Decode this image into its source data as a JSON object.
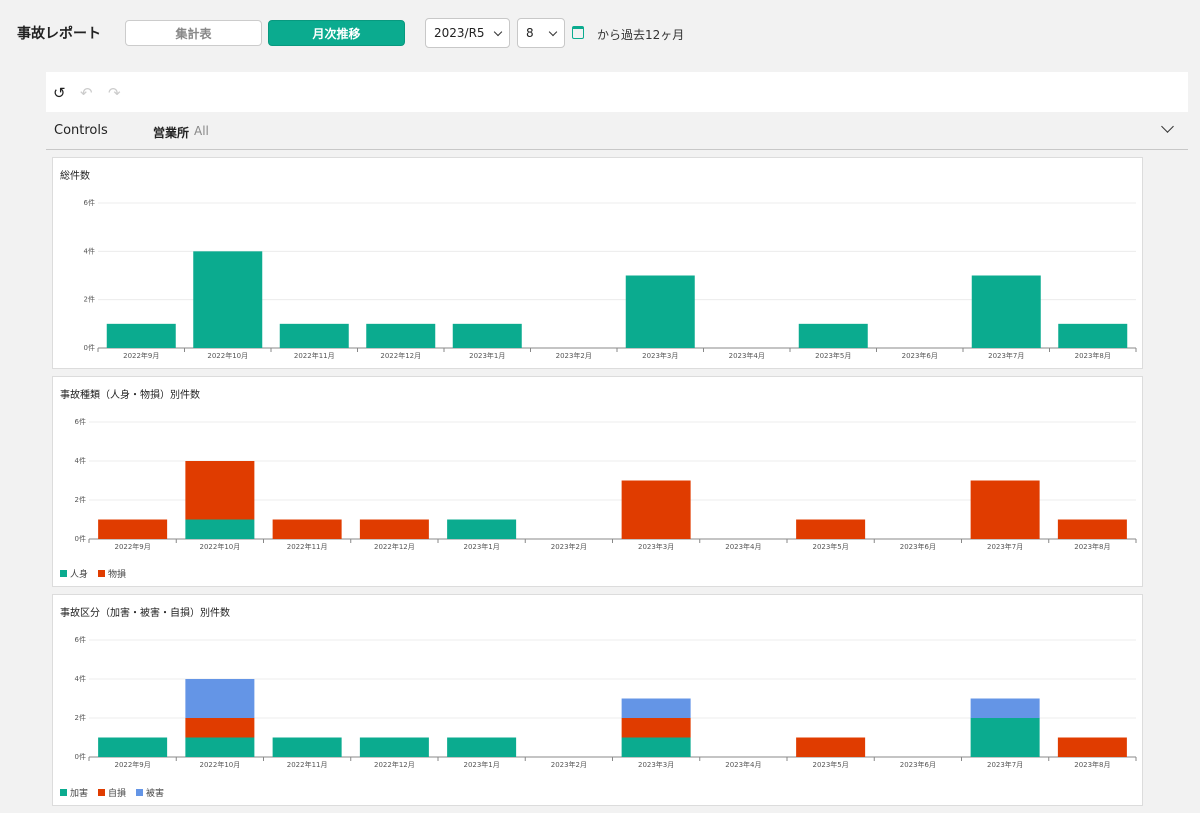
{
  "header": {
    "title": "事故レポート",
    "summary_button": "集計表",
    "monthly_button": "月次推移",
    "year_value": "2023/R5",
    "month_value": "8",
    "range_text": "から過去12ヶ月"
  },
  "controls": {
    "label": "Controls",
    "filter_label": "営業所",
    "filter_value": "All"
  },
  "colors": {
    "green": "#0bab8f",
    "red": "#e03c00",
    "blue": "#6495e6"
  },
  "chart_data": [
    {
      "type": "bar",
      "title": "総件数",
      "categories": [
        "2022年9月",
        "2022年10月",
        "2022年11月",
        "2022年12月",
        "2023年1月",
        "2023年2月",
        "2023年3月",
        "2023年4月",
        "2023年5月",
        "2023年6月",
        "2023年7月",
        "2023年8月"
      ],
      "series": [
        {
          "values": [
            1,
            4,
            1,
            1,
            1,
            0,
            3,
            0,
            1,
            0,
            3,
            1
          ],
          "color": "#0bab8f"
        }
      ],
      "yticks": [
        "0件",
        "2件",
        "4件",
        "6件"
      ],
      "ylim": [
        0,
        6
      ]
    },
    {
      "type": "bar",
      "stacked": true,
      "title": "事故種類（人身・物損）別件数",
      "categories": [
        "2022年9月",
        "2022年10月",
        "2022年11月",
        "2022年12月",
        "2023年1月",
        "2023年2月",
        "2023年3月",
        "2023年4月",
        "2023年5月",
        "2023年6月",
        "2023年7月",
        "2023年8月"
      ],
      "series": [
        {
          "name": "人身",
          "values": [
            0,
            1,
            0,
            0,
            1,
            0,
            0,
            0,
            0,
            0,
            0,
            0
          ],
          "color": "#0bab8f"
        },
        {
          "name": "物損",
          "values": [
            1,
            3,
            1,
            1,
            0,
            0,
            3,
            0,
            1,
            0,
            3,
            1
          ],
          "color": "#e03c00"
        }
      ],
      "yticks": [
        "0件",
        "2件",
        "4件",
        "6件"
      ],
      "ylim": [
        0,
        6
      ],
      "legend": "bottom-left"
    },
    {
      "type": "bar",
      "stacked": true,
      "title": "事故区分（加害・被害・自損）別件数",
      "categories": [
        "2022年9月",
        "2022年10月",
        "2022年11月",
        "2022年12月",
        "2023年1月",
        "2023年2月",
        "2023年3月",
        "2023年4月",
        "2023年5月",
        "2023年6月",
        "2023年7月",
        "2023年8月"
      ],
      "series": [
        {
          "name": "加害",
          "values": [
            1,
            1,
            1,
            1,
            1,
            0,
            1,
            0,
            0,
            0,
            2,
            0
          ],
          "color": "#0bab8f"
        },
        {
          "name": "自損",
          "values": [
            0,
            1,
            0,
            0,
            0,
            0,
            1,
            0,
            1,
            0,
            0,
            1
          ],
          "color": "#e03c00"
        },
        {
          "name": "被害",
          "values": [
            0,
            2,
            0,
            0,
            0,
            0,
            1,
            0,
            0,
            0,
            1,
            0
          ],
          "color": "#6495e6"
        }
      ],
      "yticks": [
        "0件",
        "2件",
        "4件",
        "6件"
      ],
      "ylim": [
        0,
        6
      ],
      "legend": "bottom-left"
    }
  ]
}
